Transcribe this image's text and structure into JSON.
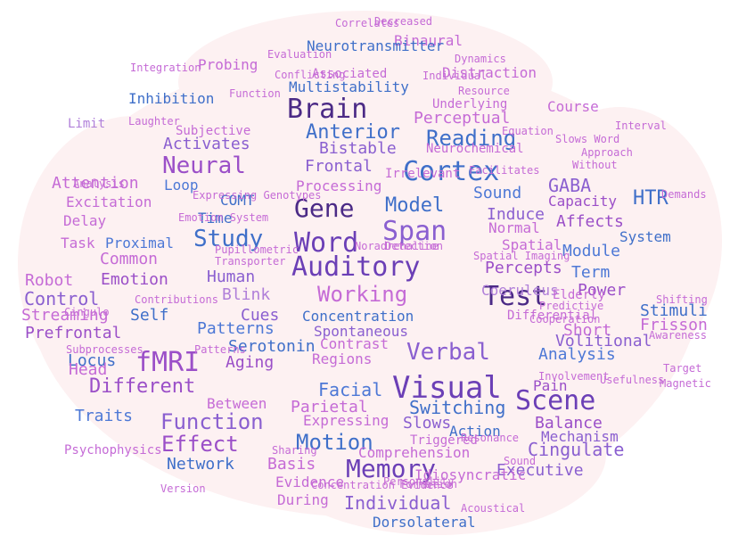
{
  "image": {
    "kind": "word cloud in the shape of a brain",
    "palette": [
      "#4b2a86",
      "#6b3fb6",
      "#8a5fd0",
      "#9b4fc8",
      "#3f6fc9",
      "#4d78d6",
      "#c56bd6",
      "#b07fd9",
      "#7a8fd8"
    ],
    "background_shape": "brain",
    "background_color": "#fdf1f2"
  },
  "words": [
    "Auditory",
    "Brain",
    "Cortex",
    "Span",
    "Word",
    "Gene",
    "Visual",
    "Memory",
    "Scene",
    "Test",
    "Reading",
    "Working",
    "Verbal",
    "Model",
    "Anterior",
    "Neural",
    "Study",
    "fMRI",
    "Motion",
    "Function",
    "Effect",
    "Different",
    "Facial",
    "Switching",
    "Percepts",
    "Sound",
    "Analysis",
    "GABA",
    "HTR",
    "Cingulate",
    "Executive",
    "Individual",
    "Control",
    "Attention",
    "Prefrontal",
    "Locus",
    "Human",
    "Blink",
    "Cues",
    "Patterns",
    "Aging",
    "Serotonin",
    "Common",
    "Emotion",
    "Proximal",
    "Streaming",
    "Robot",
    "Head",
    "Traits",
    "Balance",
    "Mechanism",
    "Short",
    "Frisson",
    "Stimuli",
    "Volitional",
    "Power",
    "Term",
    "Module",
    "Normal",
    "Spatial",
    "Induce",
    "Affects",
    "Capacity",
    "Frontal",
    "Bistable",
    "Activates",
    "Time",
    "Self",
    "Delay",
    "Task",
    "Limit",
    "Excitation",
    "Loop",
    "Subjective",
    "Inhibition",
    "Probing",
    "Associated",
    "Multistability",
    "Perceptual",
    "Concentration",
    "Spontaneous",
    "Contrast",
    "Regions",
    "Parietal",
    "Expressing",
    "Slows",
    "Action",
    "Dorsolateral",
    "Comprehension",
    "Evidence",
    "During",
    "Basis",
    "Network",
    "Between",
    "Course",
    "Distraction",
    "Binaural",
    "Neurotransmitter",
    "Correlates",
    "Decreased",
    "Underlying",
    "Resource",
    "Neurochemical",
    "Irrelevant",
    "Processing",
    "COMT",
    "Coeruleus",
    "Elderly",
    "Pain",
    "System",
    "Differential",
    "Triggered",
    "Psychophysics",
    "Idiosyncratic",
    "Noradrenaline",
    "Detection",
    "Usefulness",
    "Involvement",
    "Cooperation",
    "Predictive",
    "Awareness",
    "Shifting",
    "Target",
    "Magnetic",
    "Demands",
    "Slows Word",
    "Interval",
    "Expressing Genotypes",
    "Contributions",
    "Subprocesses",
    "Transporter",
    "Pupillometric",
    "Spatial Imaging",
    "Version",
    "Concentration Evidence",
    "Sharing",
    "Personality",
    "Formation",
    "Acoustical",
    "Resonance",
    "Approach",
    "Without",
    "Facilitates",
    "Equation",
    "Emotion System",
    "Cingulo",
    "Analysis",
    "Laughter",
    "Integration",
    "Function",
    "Evaluation",
    "Conflicting",
    "Individual",
    "Dynamics",
    "Patterns",
    "Sound"
  ]
}
